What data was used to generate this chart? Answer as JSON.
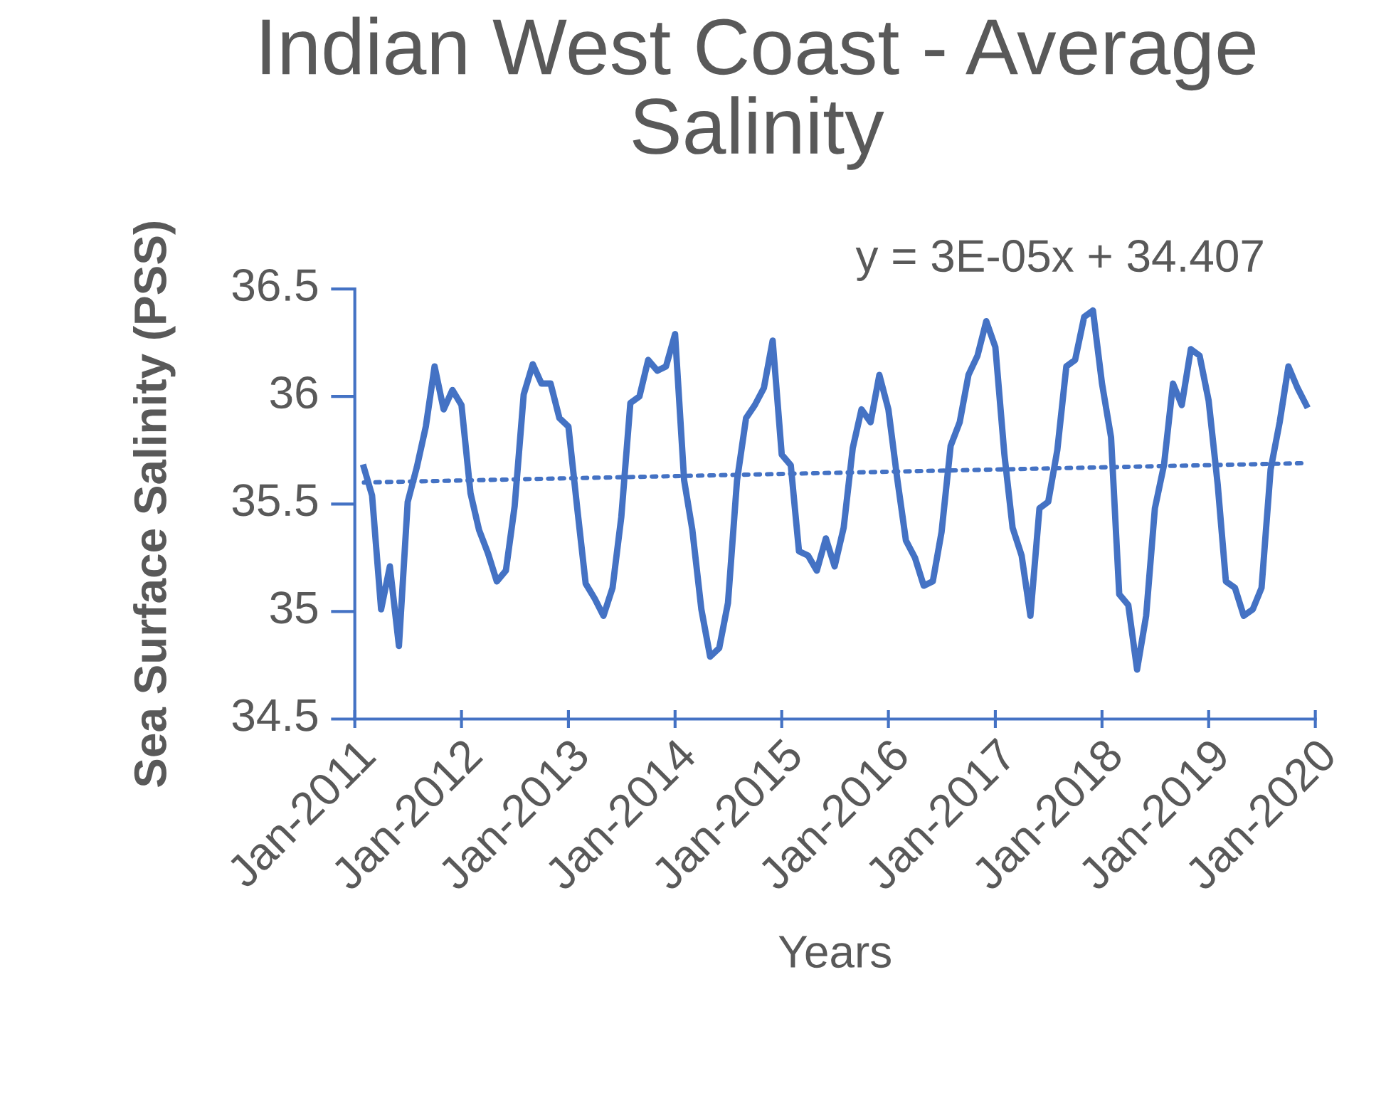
{
  "chart_data": {
    "type": "line",
    "title": "Indian West Coast - Average Salinity",
    "xlabel": "Years",
    "ylabel": "Sea Surface Salinity (PSS)",
    "annotations": [
      "y = 3E-05x + 34.407"
    ],
    "xlim": [
      "2011-01",
      "2020-01"
    ],
    "xticks": [
      {
        "value": "2011-01",
        "label": "Jan-2011"
      },
      {
        "value": "2012-01",
        "label": "Jan-2012"
      },
      {
        "value": "2013-01",
        "label": "Jan-2013"
      },
      {
        "value": "2014-01",
        "label": "Jan-2014"
      },
      {
        "value": "2015-01",
        "label": "Jan-2015"
      },
      {
        "value": "2016-01",
        "label": "Jan-2016"
      },
      {
        "value": "2017-01",
        "label": "Jan-2017"
      },
      {
        "value": "2018-01",
        "label": "Jan-2018"
      },
      {
        "value": "2019-01",
        "label": "Jan-2019"
      },
      {
        "value": "2020-01",
        "label": "Jan-2020"
      }
    ],
    "ylim": [
      34.5,
      36.5
    ],
    "yticks": [
      34.5,
      35,
      35.5,
      36,
      36.5
    ],
    "grid": false,
    "legend": false,
    "marker": "none",
    "series": [
      {
        "color": "#4472c4",
        "line_style": "solid",
        "x": [
          "2011-02",
          "2011-03",
          "2011-04",
          "2011-05",
          "2011-06",
          "2011-07",
          "2011-08",
          "2011-09",
          "2011-10",
          "2011-11",
          "2011-12",
          "2012-01",
          "2012-02",
          "2012-03",
          "2012-04",
          "2012-05",
          "2012-06",
          "2012-07",
          "2012-08",
          "2012-09",
          "2012-10",
          "2012-11",
          "2012-12",
          "2013-01",
          "2013-02",
          "2013-03",
          "2013-04",
          "2013-05",
          "2013-06",
          "2013-07",
          "2013-08",
          "2013-09",
          "2013-10",
          "2013-11",
          "2013-12",
          "2014-01",
          "2014-02",
          "2014-03",
          "2014-04",
          "2014-05",
          "2014-06",
          "2014-07",
          "2014-08",
          "2014-09",
          "2014-10",
          "2014-11",
          "2014-12",
          "2015-01",
          "2015-02",
          "2015-03",
          "2015-04",
          "2015-05",
          "2015-06",
          "2015-07",
          "2015-08",
          "2015-09",
          "2015-10",
          "2015-11",
          "2015-12",
          "2016-01",
          "2016-02",
          "2016-03",
          "2016-04",
          "2016-05",
          "2016-06",
          "2016-07",
          "2016-08",
          "2016-09",
          "2016-10",
          "2016-11",
          "2016-12",
          "2017-01",
          "2017-02",
          "2017-03",
          "2017-04",
          "2017-05",
          "2017-06",
          "2017-07",
          "2017-08",
          "2017-09",
          "2017-10",
          "2017-11",
          "2017-12",
          "2018-01",
          "2018-02",
          "2018-03",
          "2018-04",
          "2018-05",
          "2018-06",
          "2018-07",
          "2018-08",
          "2018-09",
          "2018-10",
          "2018-11",
          "2018-12",
          "2019-01",
          "2019-02",
          "2019-03",
          "2019-04",
          "2019-05",
          "2019-06",
          "2019-07",
          "2019-08",
          "2019-09",
          "2019-10",
          "2019-11",
          "2019-12"
        ],
        "values": [
          35.67,
          35.54,
          35.01,
          35.21,
          34.84,
          35.51,
          35.67,
          35.86,
          36.14,
          35.94,
          36.03,
          35.96,
          35.55,
          35.38,
          35.27,
          35.14,
          35.19,
          35.49,
          36.01,
          36.15,
          36.06,
          36.06,
          35.9,
          35.86,
          35.47,
          35.13,
          35.06,
          34.98,
          35.11,
          35.44,
          35.97,
          36.0,
          36.17,
          36.12,
          36.14,
          36.29,
          35.61,
          35.38,
          35.01,
          34.79,
          34.83,
          35.04,
          35.61,
          35.9,
          35.96,
          36.04,
          36.26,
          35.73,
          35.68,
          35.28,
          35.26,
          35.19,
          35.34,
          35.21,
          35.39,
          35.76,
          35.94,
          35.88,
          36.1,
          35.94,
          35.61,
          35.33,
          35.25,
          35.12,
          35.14,
          35.37,
          35.77,
          35.88,
          36.1,
          36.19,
          36.35,
          36.23,
          35.73,
          35.39,
          35.26,
          34.98,
          35.48,
          35.51,
          35.75,
          36.14,
          36.17,
          36.37,
          36.4,
          36.06,
          35.81,
          35.08,
          35.03,
          34.73,
          34.98,
          35.48,
          35.68,
          36.06,
          35.96,
          36.22,
          36.19,
          35.98,
          35.59,
          35.14,
          35.11,
          34.98,
          35.01,
          35.11,
          35.66,
          35.88,
          36.14,
          36.04,
          35.96
        ]
      },
      {
        "color": "#4472c4",
        "line_style": "dotted",
        "x": [
          "2011-02",
          "2019-12"
        ],
        "values": [
          35.6,
          35.69
        ]
      }
    ]
  }
}
